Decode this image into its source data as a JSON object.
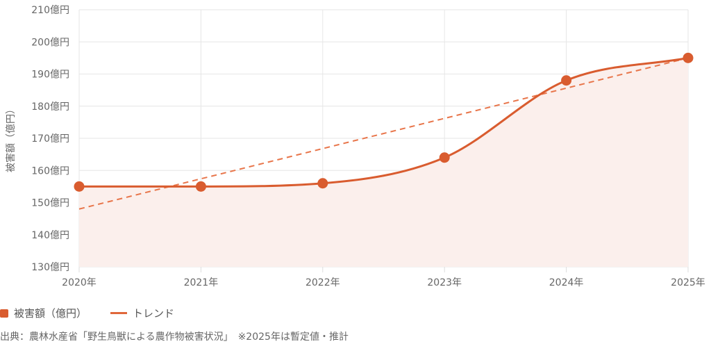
{
  "chart_data": {
    "type": "line",
    "ylabel": "被害額（億円）",
    "xlabel": "",
    "categories": [
      "2020年",
      "2021年",
      "2022年",
      "2023年",
      "2024年",
      "2025年"
    ],
    "ylim": [
      130,
      210
    ],
    "yticks": [
      130,
      140,
      150,
      160,
      170,
      180,
      190,
      200,
      210
    ],
    "ytick_suffix": "億円",
    "grid": true,
    "series": [
      {
        "name": "被害額（億円）",
        "values": [
          155,
          155,
          156,
          164,
          188,
          195
        ],
        "color": "#d95c2f",
        "fill": "#fbefec",
        "smooth": true
      },
      {
        "name": "トレンド",
        "values": [
          148,
          157.4,
          166.8,
          176.2,
          185.6,
          195
        ],
        "color": "#e8754a",
        "dashed": true
      }
    ],
    "legend_placement": "bottom-left"
  },
  "legend": {
    "series1": "被害額（億円）",
    "series2": "トレンド"
  },
  "source": "出典：農林水産省「野生鳥獣による農作物被害状況」　※2025年は暫定値・推計"
}
